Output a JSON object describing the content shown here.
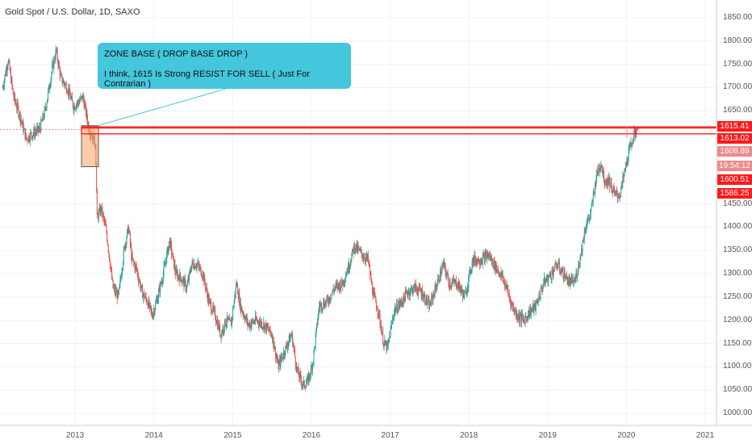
{
  "chart_data": {
    "type": "candlestick",
    "title": "Gold Spot / U.S. Dollar, 1D, SAXO",
    "ylim": [
      985,
      1875
    ],
    "x_range": [
      2012.08,
      2021.2
    ],
    "yticks": [
      1000,
      1050,
      1100,
      1150,
      1200,
      1250,
      1300,
      1350,
      1400,
      1450,
      1650,
      1700,
      1750,
      1800,
      1850
    ],
    "ytick_labels": [
      "1000.00",
      "1050.00",
      "1100.00",
      "1150.00",
      "1200.00",
      "1250.00",
      "1300.00",
      "1350.00",
      "1400.00",
      "1450.00",
      "1650.00",
      "1700.00",
      "1750.00",
      "1800.00",
      "1850.00"
    ],
    "xticks": [
      2013,
      2014,
      2015,
      2016,
      2017,
      2018,
      2019,
      2020,
      2021
    ],
    "xtick_labels": [
      "2013",
      "2014",
      "2015",
      "2016",
      "2017",
      "2018",
      "2019",
      "2020",
      "2021"
    ],
    "grid": true,
    "price_trend": [
      [
        2012.08,
        1700
      ],
      [
        2012.15,
        1760
      ],
      [
        2012.22,
        1680
      ],
      [
        2012.3,
        1640
      ],
      [
        2012.38,
        1590
      ],
      [
        2012.45,
        1600
      ],
      [
        2012.55,
        1610
      ],
      [
        2012.62,
        1650
      ],
      [
        2012.7,
        1730
      ],
      [
        2012.76,
        1780
      ],
      [
        2012.82,
        1720
      ],
      [
        2012.9,
        1700
      ],
      [
        2012.98,
        1660
      ],
      [
        2013.05,
        1670
      ],
      [
        2013.1,
        1680
      ],
      [
        2013.18,
        1610
      ],
      [
        2013.26,
        1580
      ],
      [
        2013.28,
        1420
      ],
      [
        2013.33,
        1440
      ],
      [
        2013.4,
        1390
      ],
      [
        2013.48,
        1270
      ],
      [
        2013.55,
        1250
      ],
      [
        2013.63,
        1360
      ],
      [
        2013.68,
        1400
      ],
      [
        2013.72,
        1330
      ],
      [
        2013.78,
        1310
      ],
      [
        2013.85,
        1260
      ],
      [
        2013.92,
        1240
      ],
      [
        2013.98,
        1210
      ],
      [
        2014.05,
        1250
      ],
      [
        2014.12,
        1300
      ],
      [
        2014.2,
        1370
      ],
      [
        2014.28,
        1300
      ],
      [
        2014.35,
        1290
      ],
      [
        2014.42,
        1270
      ],
      [
        2014.48,
        1320
      ],
      [
        2014.55,
        1320
      ],
      [
        2014.62,
        1300
      ],
      [
        2014.7,
        1240
      ],
      [
        2014.78,
        1210
      ],
      [
        2014.85,
        1170
      ],
      [
        2014.92,
        1200
      ],
      [
        2014.98,
        1190
      ],
      [
        2015.05,
        1280
      ],
      [
        2015.1,
        1230
      ],
      [
        2015.2,
        1190
      ],
      [
        2015.3,
        1200
      ],
      [
        2015.4,
        1190
      ],
      [
        2015.5,
        1170
      ],
      [
        2015.58,
        1100
      ],
      [
        2015.65,
        1130
      ],
      [
        2015.75,
        1170
      ],
      [
        2015.82,
        1090
      ],
      [
        2015.9,
        1060
      ],
      [
        2015.96,
        1070
      ],
      [
        2016.02,
        1110
      ],
      [
        2016.1,
        1230
      ],
      [
        2016.2,
        1240
      ],
      [
        2016.3,
        1270
      ],
      [
        2016.4,
        1280
      ],
      [
        2016.48,
        1320
      ],
      [
        2016.55,
        1360
      ],
      [
        2016.65,
        1340
      ],
      [
        2016.72,
        1330
      ],
      [
        2016.78,
        1260
      ],
      [
        2016.85,
        1220
      ],
      [
        2016.92,
        1150
      ],
      [
        2016.97,
        1140
      ],
      [
        2017.05,
        1220
      ],
      [
        2017.15,
        1240
      ],
      [
        2017.22,
        1260
      ],
      [
        2017.32,
        1270
      ],
      [
        2017.4,
        1260
      ],
      [
        2017.5,
        1230
      ],
      [
        2017.6,
        1280
      ],
      [
        2017.68,
        1320
      ],
      [
        2017.75,
        1280
      ],
      [
        2017.85,
        1280
      ],
      [
        2017.95,
        1250
      ],
      [
        2018.05,
        1330
      ],
      [
        2018.15,
        1330
      ],
      [
        2018.25,
        1340
      ],
      [
        2018.32,
        1320
      ],
      [
        2018.4,
        1300
      ],
      [
        2018.48,
        1270
      ],
      [
        2018.55,
        1230
      ],
      [
        2018.62,
        1210
      ],
      [
        2018.7,
        1200
      ],
      [
        2018.78,
        1220
      ],
      [
        2018.85,
        1230
      ],
      [
        2018.95,
        1280
      ],
      [
        2019.05,
        1300
      ],
      [
        2019.12,
        1320
      ],
      [
        2019.2,
        1300
      ],
      [
        2019.28,
        1280
      ],
      [
        2019.35,
        1285
      ],
      [
        2019.42,
        1340
      ],
      [
        2019.48,
        1400
      ],
      [
        2019.55,
        1430
      ],
      [
        2019.62,
        1510
      ],
      [
        2019.68,
        1540
      ],
      [
        2019.72,
        1500
      ],
      [
        2019.78,
        1500
      ],
      [
        2019.85,
        1470
      ],
      [
        2019.92,
        1470
      ],
      [
        2019.98,
        1520
      ],
      [
        2020.03,
        1560
      ],
      [
        2020.08,
        1590
      ],
      [
        2020.13,
        1610
      ]
    ],
    "zone_lines": [
      1615.41,
      1613.02,
      1600.51
    ],
    "price_tags": [
      {
        "label": "1615.41",
        "value": 1615.41,
        "color": "#ff1a1a"
      },
      {
        "label": "1613.02",
        "value": 1613.02,
        "color": "#ff1a1a"
      },
      {
        "label": "1608.89",
        "value": 1608.89,
        "color": "#ef8a8a"
      },
      {
        "label": "19:54:12",
        "value": 1592,
        "color": "#ef8a8a"
      },
      {
        "label": "1600.51",
        "value": 1600.51,
        "color": "#ff1a1a"
      },
      {
        "label": "1586.25",
        "value": 1586.25,
        "color": "#ff1a1a"
      }
    ],
    "annotations": [
      "ZONE BASE ( DROP BASE DROP )",
      "I think, 1615 Is Strong RESIST FOR SELL  ( Just For Contrarian )"
    ],
    "colors": {
      "up": "#26a69a",
      "down": "#ef5350",
      "zone": "#ff1a1a",
      "callout": "#44c6dc"
    }
  }
}
